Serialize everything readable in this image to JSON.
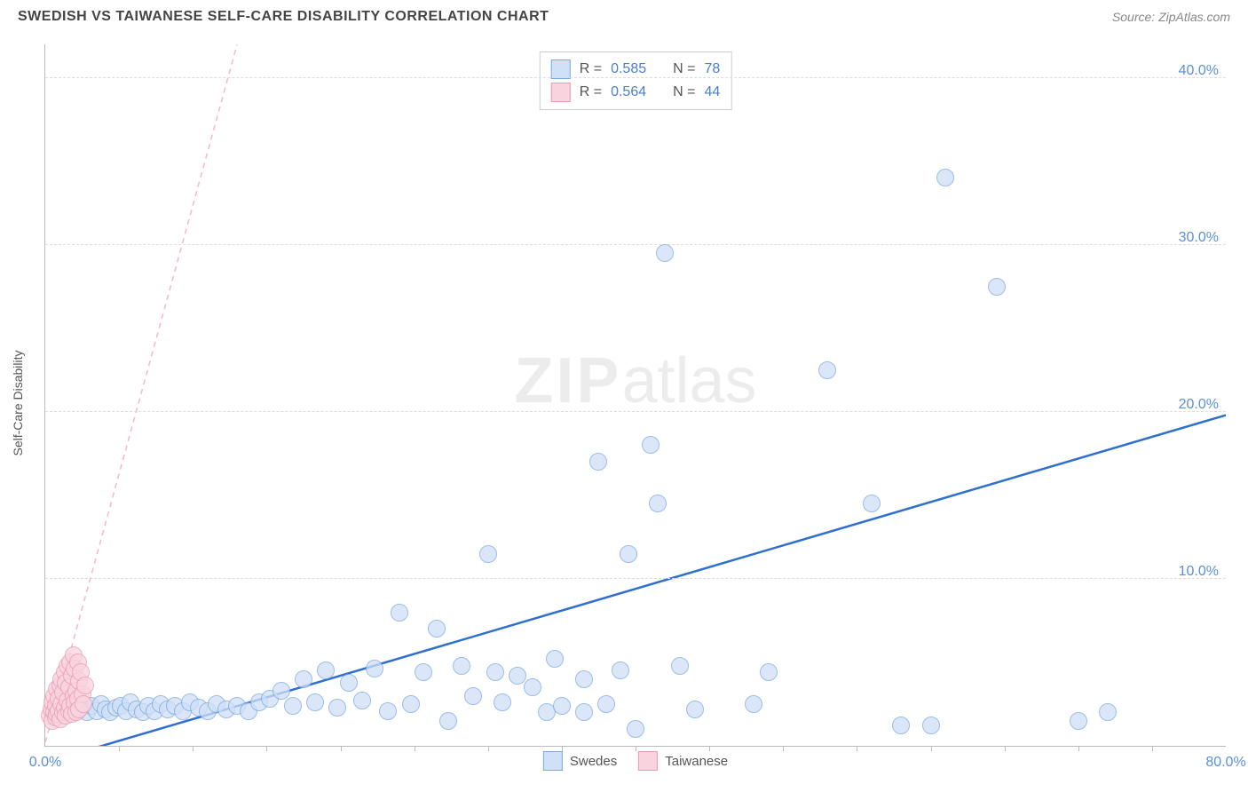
{
  "title": "SWEDISH VS TAIWANESE SELF-CARE DISABILITY CORRELATION CHART",
  "source": "Source: ZipAtlas.com",
  "y_axis_label": "Self-Care Disability",
  "watermark_bold": "ZIP",
  "watermark_rest": "atlas",
  "chart": {
    "type": "scatter",
    "xlim": [
      0,
      80
    ],
    "ylim": [
      0,
      42
    ],
    "xticks": [
      0,
      80
    ],
    "xtick_labels": [
      "0.0%",
      "80.0%"
    ],
    "x_minor_ticks": [
      5,
      10,
      15,
      20,
      25,
      30,
      35,
      40,
      45,
      50,
      55,
      60,
      65,
      70,
      75
    ],
    "yticks": [
      10,
      20,
      30,
      40
    ],
    "ytick_labels": [
      "10.0%",
      "20.0%",
      "30.0%",
      "40.0%"
    ],
    "grid_color": "#dddddd",
    "axis_color": "#bbbbbb",
    "background_color": "#ffffff",
    "series": [
      {
        "name": "Swedes",
        "fill": "#cfe0f7",
        "stroke": "#7aa8e0",
        "opacity": 0.75,
        "marker_radius": 9,
        "trend": {
          "x1": 0,
          "y1": -1.0,
          "x2": 80,
          "y2": 19.8,
          "color": "#2f6fd0",
          "width": 2.5,
          "dash": ""
        },
        "points": [
          [
            1,
            2
          ],
          [
            1.5,
            2.2
          ],
          [
            2,
            2.1
          ],
          [
            2.4,
            2.3
          ],
          [
            2.8,
            2.0
          ],
          [
            3.1,
            2.4
          ],
          [
            3.5,
            2.1
          ],
          [
            3.8,
            2.5
          ],
          [
            4.1,
            2.2
          ],
          [
            4.4,
            2.0
          ],
          [
            4.8,
            2.3
          ],
          [
            5.1,
            2.4
          ],
          [
            5.5,
            2.1
          ],
          [
            5.8,
            2.6
          ],
          [
            6.2,
            2.2
          ],
          [
            6.6,
            2.0
          ],
          [
            7.0,
            2.4
          ],
          [
            7.4,
            2.1
          ],
          [
            7.8,
            2.5
          ],
          [
            8.3,
            2.2
          ],
          [
            8.8,
            2.4
          ],
          [
            9.3,
            2.1
          ],
          [
            9.8,
            2.6
          ],
          [
            10.4,
            2.3
          ],
          [
            11.0,
            2.1
          ],
          [
            11.6,
            2.5
          ],
          [
            12.3,
            2.2
          ],
          [
            13.0,
            2.4
          ],
          [
            13.8,
            2.1
          ],
          [
            14.5,
            2.6
          ],
          [
            15.2,
            2.8
          ],
          [
            16.0,
            3.3
          ],
          [
            16.8,
            2.4
          ],
          [
            17.5,
            4.0
          ],
          [
            18.3,
            2.6
          ],
          [
            19.0,
            4.5
          ],
          [
            19.8,
            2.3
          ],
          [
            20.6,
            3.8
          ],
          [
            21.5,
            2.7
          ],
          [
            22.3,
            4.6
          ],
          [
            23.2,
            2.1
          ],
          [
            24.0,
            8.0
          ],
          [
            24.8,
            2.5
          ],
          [
            25.6,
            4.4
          ],
          [
            26.5,
            7.0
          ],
          [
            27.3,
            1.5
          ],
          [
            28.2,
            4.8
          ],
          [
            29.0,
            3.0
          ],
          [
            30.0,
            11.5
          ],
          [
            31.0,
            2.6
          ],
          [
            32.0,
            4.2
          ],
          [
            33.0,
            3.5
          ],
          [
            34.0,
            2.0
          ],
          [
            34.5,
            5.2
          ],
          [
            35.0,
            2.4
          ],
          [
            36.5,
            4.0
          ],
          [
            37.5,
            17.0
          ],
          [
            38.0,
            2.5
          ],
          [
            39.0,
            4.5
          ],
          [
            39.5,
            11.5
          ],
          [
            40.0,
            1.0
          ],
          [
            41.0,
            18.0
          ],
          [
            41.5,
            14.5
          ],
          [
            42.0,
            29.5
          ],
          [
            43.0,
            4.8
          ],
          [
            44.0,
            2.2
          ],
          [
            48.0,
            2.5
          ],
          [
            49.0,
            4.4
          ],
          [
            53.0,
            22.5
          ],
          [
            56.0,
            14.5
          ],
          [
            58.0,
            1.2
          ],
          [
            60.0,
            1.2
          ],
          [
            61.0,
            34.0
          ],
          [
            64.5,
            27.5
          ],
          [
            70.0,
            1.5
          ],
          [
            72.0,
            2.0
          ],
          [
            36.5,
            2.0
          ],
          [
            30.5,
            4.4
          ]
        ]
      },
      {
        "name": "Taiwanese",
        "fill": "#f9d4de",
        "stroke": "#e99ab2",
        "opacity": 0.75,
        "marker_radius": 9,
        "trend": {
          "x1": 0,
          "y1": 0.2,
          "x2": 13,
          "y2": 42,
          "color": "#f5b8c8",
          "width": 1.5,
          "dash": "6,5"
        },
        "points": [
          [
            0.3,
            1.8
          ],
          [
            0.4,
            2.2
          ],
          [
            0.5,
            1.5
          ],
          [
            0.5,
            2.6
          ],
          [
            0.6,
            2.0
          ],
          [
            0.6,
            3.0
          ],
          [
            0.7,
            1.7
          ],
          [
            0.7,
            2.4
          ],
          [
            0.8,
            3.4
          ],
          [
            0.8,
            1.9
          ],
          [
            0.9,
            2.8
          ],
          [
            0.9,
            2.1
          ],
          [
            1.0,
            3.6
          ],
          [
            1.0,
            1.6
          ],
          [
            1.1,
            2.5
          ],
          [
            1.1,
            4.0
          ],
          [
            1.2,
            2.0
          ],
          [
            1.2,
            3.2
          ],
          [
            1.3,
            4.4
          ],
          [
            1.3,
            2.3
          ],
          [
            1.4,
            1.8
          ],
          [
            1.4,
            3.8
          ],
          [
            1.5,
            2.7
          ],
          [
            1.5,
            4.8
          ],
          [
            1.6,
            2.1
          ],
          [
            1.6,
            3.5
          ],
          [
            1.7,
            5.0
          ],
          [
            1.7,
            2.4
          ],
          [
            1.8,
            4.2
          ],
          [
            1.8,
            1.9
          ],
          [
            1.9,
            3.0
          ],
          [
            1.9,
            5.4
          ],
          [
            2.0,
            2.6
          ],
          [
            2.0,
            4.6
          ],
          [
            2.1,
            3.3
          ],
          [
            2.1,
            2.0
          ],
          [
            2.2,
            5.0
          ],
          [
            2.2,
            2.8
          ],
          [
            2.3,
            3.9
          ],
          [
            2.3,
            2.2
          ],
          [
            2.4,
            4.4
          ],
          [
            2.5,
            3.1
          ],
          [
            2.6,
            2.5
          ],
          [
            2.7,
            3.6
          ]
        ]
      }
    ]
  },
  "legend_top": {
    "rows": [
      {
        "swatch_fill": "#cfe0f7",
        "swatch_stroke": "#7aa8e0",
        "r_label": "R =",
        "r_val": "0.585",
        "n_label": "N =",
        "n_val": "78"
      },
      {
        "swatch_fill": "#f9d4de",
        "swatch_stroke": "#e99ab2",
        "r_label": "R =",
        "r_val": "0.564",
        "n_label": "N =",
        "n_val": "44"
      }
    ]
  },
  "legend_bottom": {
    "items": [
      {
        "swatch_fill": "#cfe0f7",
        "swatch_stroke": "#7aa8e0",
        "label": "Swedes"
      },
      {
        "swatch_fill": "#f9d4de",
        "swatch_stroke": "#e99ab2",
        "label": "Taiwanese"
      }
    ]
  }
}
